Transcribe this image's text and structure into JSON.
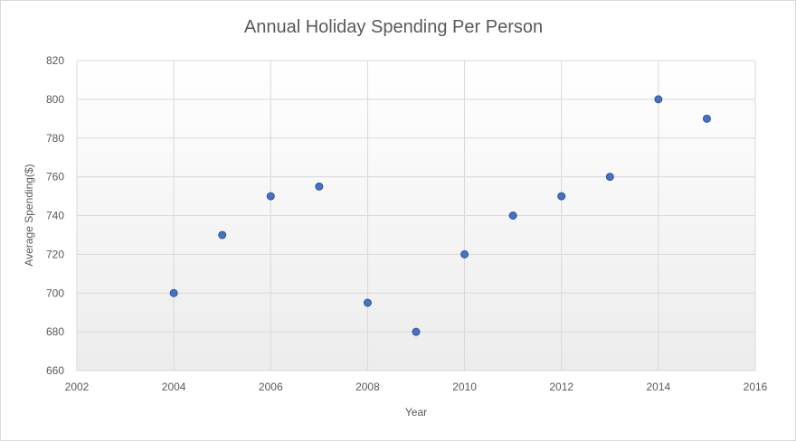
{
  "chart_data": {
    "type": "scatter",
    "title": "Annual Holiday Spending Per Person",
    "xlabel": "Year",
    "ylabel": "Average Spending($)",
    "xlim": [
      2002,
      2016
    ],
    "ylim": [
      660,
      820
    ],
    "x_ticks": [
      2002,
      2004,
      2006,
      2008,
      2010,
      2012,
      2014,
      2016
    ],
    "y_ticks": [
      660,
      680,
      700,
      720,
      740,
      760,
      780,
      800,
      820
    ],
    "grid": true,
    "legend": "none",
    "marker_color": "#4472c4",
    "points": [
      {
        "x": 2004,
        "y": 700
      },
      {
        "x": 2005,
        "y": 730
      },
      {
        "x": 2006,
        "y": 750
      },
      {
        "x": 2007,
        "y": 755
      },
      {
        "x": 2008,
        "y": 695
      },
      {
        "x": 2009,
        "y": 680
      },
      {
        "x": 2010,
        "y": 720
      },
      {
        "x": 2011,
        "y": 740
      },
      {
        "x": 2012,
        "y": 750
      },
      {
        "x": 2013,
        "y": 760
      },
      {
        "x": 2014,
        "y": 800
      },
      {
        "x": 2015,
        "y": 790
      }
    ]
  }
}
